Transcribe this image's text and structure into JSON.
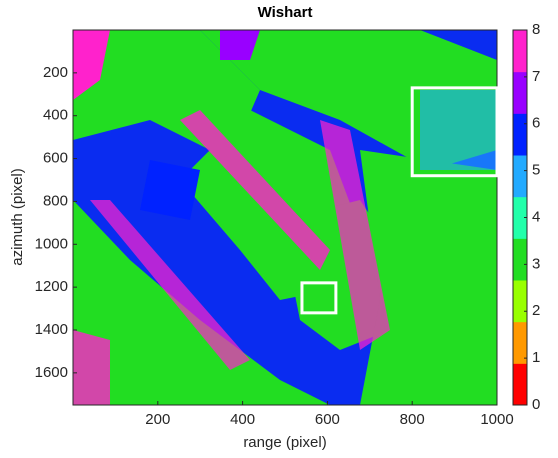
{
  "chart_data": {
    "type": "image",
    "title": "Wishart",
    "xlabel": "range (pixel)",
    "ylabel": "azimuth (pixel)",
    "xlim": [
      0,
      1000
    ],
    "xticks": [
      200,
      400,
      600,
      800,
      1000
    ],
    "ylim": [
      0,
      1750
    ],
    "yticks": [
      200,
      400,
      600,
      800,
      1000,
      1200,
      1400,
      1600
    ],
    "y_reversed": true,
    "colormap": [
      "#ff0000",
      "#ff9900",
      "#99ff00",
      "#22dd22",
      "#22ffaa",
      "#22aaff",
      "#0022ff",
      "#9900ff",
      "#ff22cc"
    ],
    "clim": [
      0,
      8
    ],
    "cticks": [
      0,
      1,
      2,
      3,
      4,
      5,
      6,
      7,
      8
    ],
    "annotations": [
      {
        "x": [
          800,
          1000
        ],
        "y": [
          270,
          680
        ]
      },
      {
        "x": [
          540,
          620
        ],
        "y": [
          1180,
          1320
        ]
      }
    ]
  }
}
